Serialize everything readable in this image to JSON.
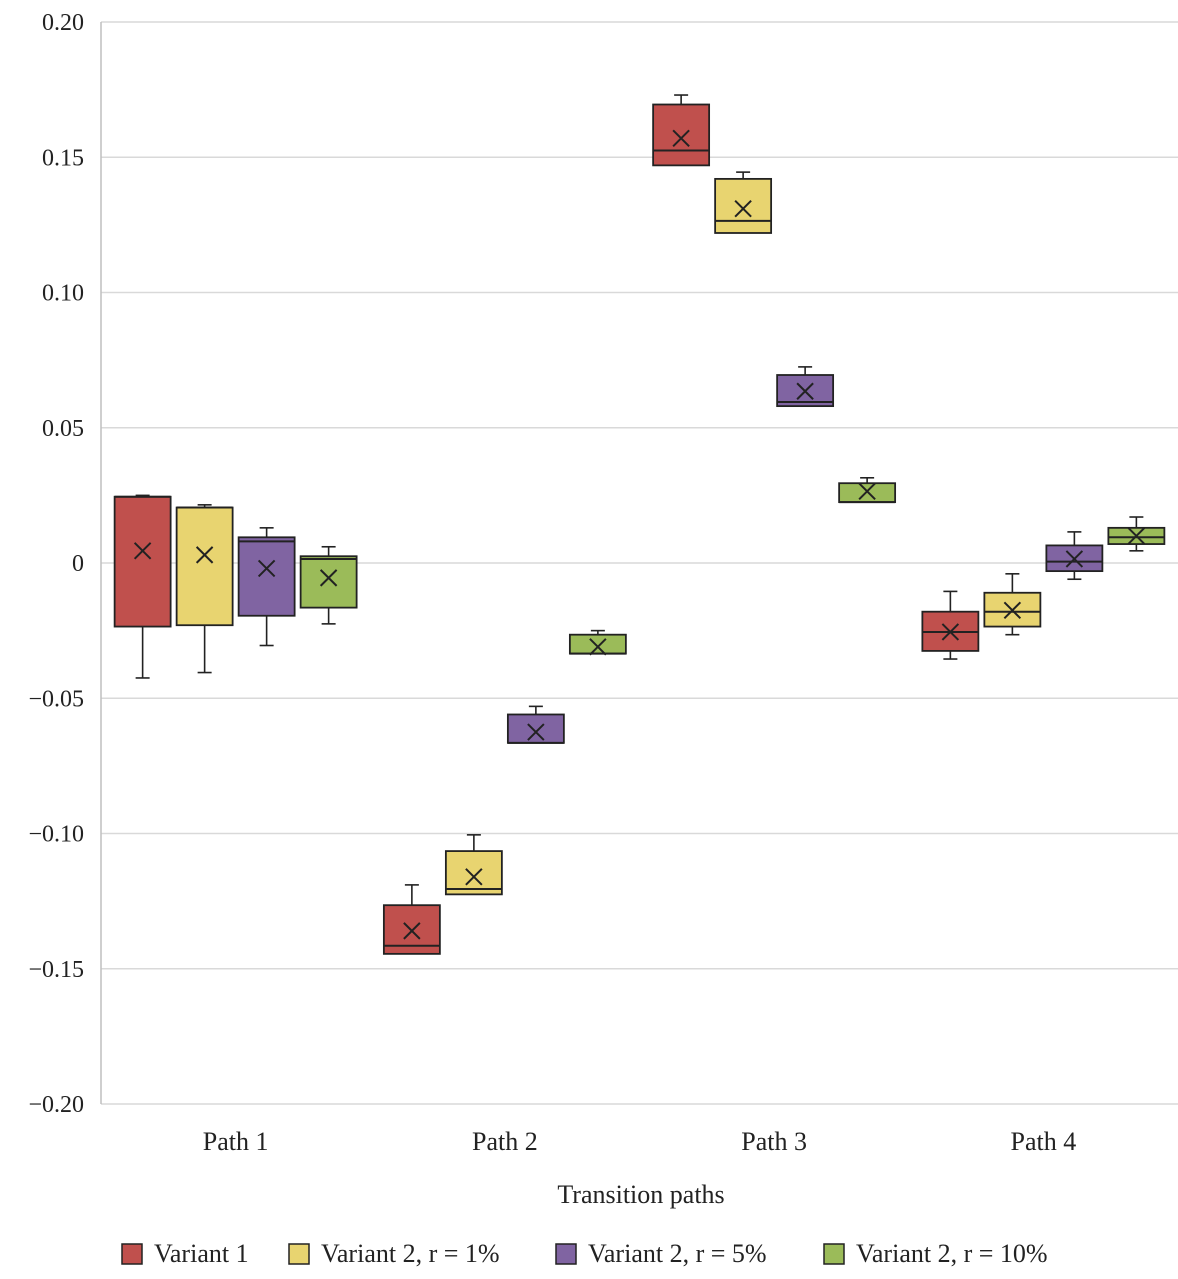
{
  "chart_data": {
    "type": "box",
    "xlabel": "Transition paths",
    "ylabel": "",
    "ylim": [
      -0.2,
      0.2
    ],
    "yticks": [
      0.2,
      0.15,
      0.1,
      0.05,
      0,
      -0.05,
      -0.1,
      -0.15,
      -0.2
    ],
    "ytick_labels": [
      "0.20",
      "0.15",
      "0.10",
      "0.05",
      "0",
      "−0.05",
      "−0.10",
      "−0.15",
      "−0.20"
    ],
    "categories": [
      "Path 1",
      "Path 2",
      "Path 3",
      "Path 4"
    ],
    "grid": true,
    "legend_position": "bottom",
    "series": [
      {
        "name": "Variant 1",
        "color": "#c0504d",
        "boxes": [
          {
            "min": -0.0425,
            "q1": -0.0235,
            "median": 0.0245,
            "q3": 0.0245,
            "max": 0.025,
            "mean": 0.0045
          },
          {
            "min": -0.1445,
            "q1": -0.1445,
            "median": -0.1415,
            "q3": -0.1265,
            "max": -0.119,
            "mean": -0.136
          },
          {
            "min": 0.147,
            "q1": 0.147,
            "median": 0.1525,
            "q3": 0.1695,
            "max": 0.173,
            "mean": 0.157
          },
          {
            "min": -0.0355,
            "q1": -0.0325,
            "median": -0.0255,
            "q3": -0.018,
            "max": -0.0105,
            "mean": -0.0255
          }
        ]
      },
      {
        "name": "Variant 2, r = 1%",
        "color": "#e8d470",
        "boxes": [
          {
            "min": -0.0405,
            "q1": -0.023,
            "median": 0.0205,
            "q3": 0.0205,
            "max": 0.0215,
            "mean": 0.003
          },
          {
            "min": -0.1225,
            "q1": -0.1225,
            "median": -0.1205,
            "q3": -0.1065,
            "max": -0.1005,
            "mean": -0.116
          },
          {
            "min": 0.122,
            "q1": 0.122,
            "median": 0.1265,
            "q3": 0.142,
            "max": 0.1445,
            "mean": 0.131
          },
          {
            "min": -0.0265,
            "q1": -0.0235,
            "median": -0.018,
            "q3": -0.011,
            "max": -0.004,
            "mean": -0.0175
          }
        ]
      },
      {
        "name": "Variant 2, r = 5%",
        "color": "#8064a2",
        "boxes": [
          {
            "min": -0.0305,
            "q1": -0.0195,
            "median": 0.008,
            "q3": 0.0095,
            "max": 0.013,
            "mean": -0.002
          },
          {
            "min": -0.0665,
            "q1": -0.0665,
            "median": -0.0665,
            "q3": -0.056,
            "max": -0.053,
            "mean": -0.0625
          },
          {
            "min": 0.058,
            "q1": 0.058,
            "median": 0.0595,
            "q3": 0.0695,
            "max": 0.0725,
            "mean": 0.0635
          },
          {
            "min": -0.006,
            "q1": -0.003,
            "median": 0.0005,
            "q3": 0.0065,
            "max": 0.0115,
            "mean": 0.0015
          }
        ]
      },
      {
        "name": "Variant 2, r = 10%",
        "color": "#9bbb59",
        "boxes": [
          {
            "min": -0.0225,
            "q1": -0.0165,
            "median": 0.0015,
            "q3": 0.0025,
            "max": 0.006,
            "mean": -0.0055
          },
          {
            "min": -0.0335,
            "q1": -0.0335,
            "median": -0.0335,
            "q3": -0.0265,
            "max": -0.025,
            "mean": -0.031
          },
          {
            "min": 0.0225,
            "q1": 0.0225,
            "median": 0.0225,
            "q3": 0.0295,
            "max": 0.0315,
            "mean": 0.0265
          },
          {
            "min": 0.0045,
            "q1": 0.007,
            "median": 0.0095,
            "q3": 0.013,
            "max": 0.017,
            "mean": 0.01
          }
        ]
      }
    ]
  }
}
